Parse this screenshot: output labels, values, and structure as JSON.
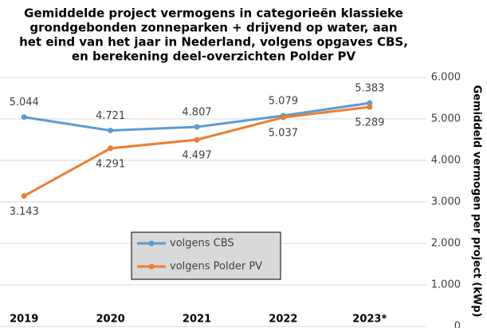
{
  "chart_data": {
    "type": "line",
    "title": [
      "Gemiddelde  project vermogens in categorieën klassieke",
      "grondgebonden zonneparken + drijvend op water, aan",
      "het eind van het jaar in Nederland, volgens opgaves CBS,",
      "en berekening deel-overzichten Polder PV"
    ],
    "y_label": "Gemiddeld vermogen per project (kWp)",
    "categories": [
      "2019",
      "2020",
      "2021",
      "2022",
      "2023*"
    ],
    "series": [
      {
        "name": "volgens CBS",
        "color": "#5b9bd5",
        "values": [
          5044,
          4721,
          4807,
          5079,
          5383
        ],
        "value_labels": [
          "5.044",
          "4.721",
          "4.807",
          "5.079",
          "5.383"
        ]
      },
      {
        "name": "volgens Polder PV",
        "color": "#ed7d31",
        "values": [
          3143,
          4291,
          4497,
          5037,
          5289
        ],
        "value_labels": [
          "3.143",
          "4.291",
          "4.497",
          "5.037",
          "5.289"
        ]
      }
    ],
    "ylim": [
      0,
      6000
    ],
    "yticks": [
      {
        "value": 0,
        "label": "0"
      },
      {
        "value": 1000,
        "label": "1.000"
      },
      {
        "value": 2000,
        "label": "2.000"
      },
      {
        "value": 3000,
        "label": "3.000"
      },
      {
        "value": 4000,
        "label": "4.000"
      },
      {
        "value": 5000,
        "label": "5.000"
      },
      {
        "value": 6000,
        "label": "6.000"
      }
    ],
    "grid": true
  }
}
